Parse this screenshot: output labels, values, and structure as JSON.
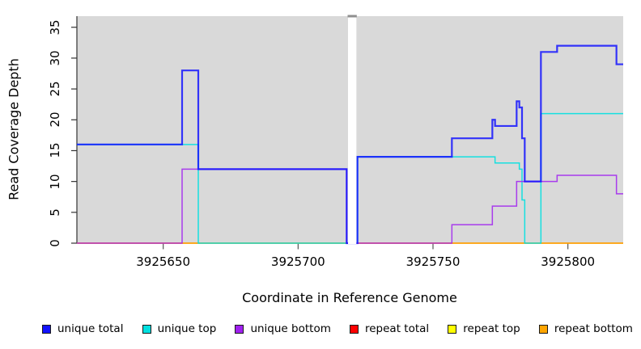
{
  "chart_data": {
    "type": "line",
    "title": "",
    "xlabel": "Coordinate in Reference Genome",
    "ylabel": "Read Coverage Depth",
    "xlim": [
      3925618,
      3925820.5
    ],
    "ylim": [
      0,
      36.8
    ],
    "x_ticks": [
      3925650,
      3925700,
      3925750,
      3925800
    ],
    "y_ticks": [
      0,
      5,
      10,
      15,
      20,
      25,
      30,
      35
    ],
    "grid": false,
    "legend_position": "bottom",
    "panel_color": "#d9d9d9",
    "gap_region": {
      "from": 3925718.5,
      "to": 3925721.6
    },
    "x_end": 3925820.5,
    "series": [
      {
        "key": "unique_total",
        "label": "unique total",
        "color": "#1212ff",
        "steps": [
          [
            3925618,
            16
          ],
          [
            3925657,
            28
          ],
          [
            3925663,
            12
          ],
          [
            3925718,
            0
          ],
          [
            3925722,
            14
          ],
          [
            3925757,
            17
          ],
          [
            3925772,
            20
          ],
          [
            3925773,
            19
          ],
          [
            3925781,
            23
          ],
          [
            3925782,
            22
          ],
          [
            3925783,
            17
          ],
          [
            3925784,
            10
          ],
          [
            3925790,
            31
          ],
          [
            3925796,
            32
          ],
          [
            3925818,
            29
          ]
        ]
      },
      {
        "key": "unique_top",
        "label": "unique top",
        "color": "#00e0e0",
        "steps": [
          [
            3925618,
            16
          ],
          [
            3925663,
            0
          ],
          [
            3925722,
            14
          ],
          [
            3925773,
            13
          ],
          [
            3925782,
            12
          ],
          [
            3925783,
            7
          ],
          [
            3925784,
            0
          ],
          [
            3925790,
            21
          ]
        ]
      },
      {
        "key": "unique_bottom",
        "label": "unique bottom",
        "color": "#a020f0",
        "steps": [
          [
            3925618,
            0
          ],
          [
            3925657,
            12
          ],
          [
            3925718,
            0
          ],
          [
            3925757,
            3
          ],
          [
            3925772,
            6
          ],
          [
            3925781,
            10
          ],
          [
            3925796,
            11
          ],
          [
            3925818,
            8
          ]
        ]
      },
      {
        "key": "repeat_total",
        "label": "repeat total",
        "color": "#ff0000",
        "steps": [
          [
            3925618,
            0
          ]
        ]
      },
      {
        "key": "repeat_top",
        "label": "repeat top",
        "color": "#ffff00",
        "steps": [
          [
            3925618,
            0
          ]
        ]
      },
      {
        "key": "repeat_bottom",
        "label": "repeat bottom",
        "color": "#ffa500",
        "steps": [
          [
            3925618,
            0
          ]
        ]
      }
    ]
  }
}
